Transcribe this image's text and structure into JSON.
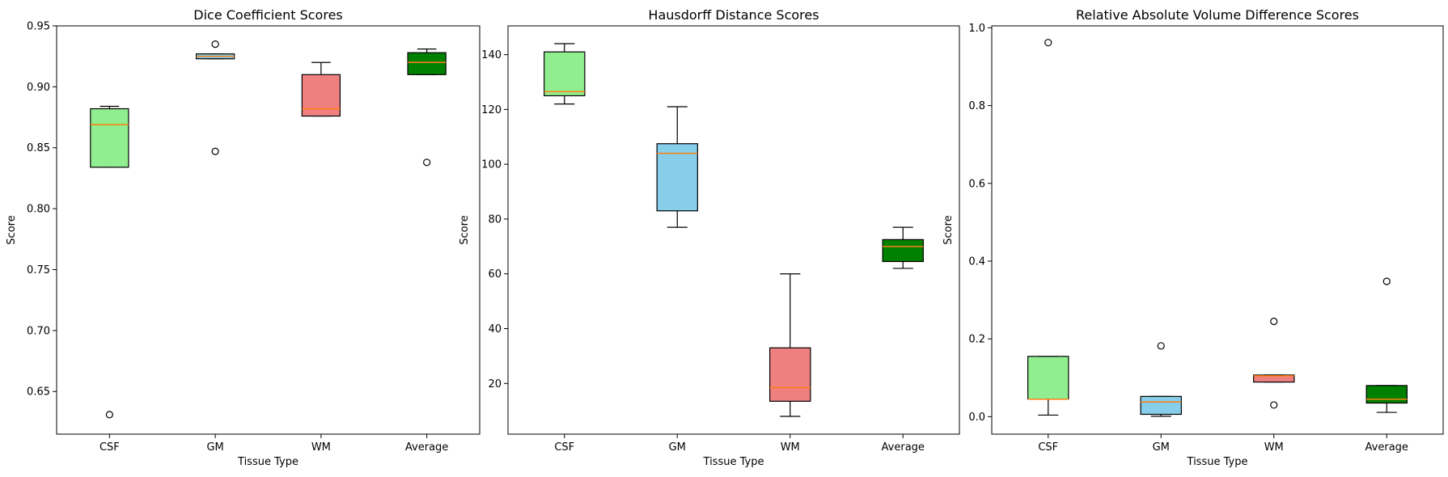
{
  "chart_data": [
    {
      "type": "box",
      "title": "Dice Coefficient Scores",
      "xlabel": "Tissue Type",
      "ylabel": "Score",
      "categories": [
        "CSF",
        "GM",
        "WM",
        "Average"
      ],
      "ylim": [
        0.615,
        0.95
      ],
      "yticks": [
        0.65,
        0.7,
        0.75,
        0.8,
        0.85,
        0.9,
        0.95
      ],
      "yticklabels": [
        "0.65",
        "0.70",
        "0.75",
        "0.80",
        "0.85",
        "0.90",
        "0.95"
      ],
      "boxes": [
        {
          "q1": 0.834,
          "median": 0.869,
          "q3": 0.882,
          "whislo": 0.834,
          "whishi": 0.884,
          "fliers": [
            0.631
          ],
          "color": "#90ee90"
        },
        {
          "q1": 0.923,
          "median": 0.925,
          "q3": 0.927,
          "whislo": 0.923,
          "whishi": 0.927,
          "fliers": [
            0.935,
            0.847
          ],
          "color": "#87ceeb"
        },
        {
          "q1": 0.876,
          "median": 0.882,
          "q3": 0.91,
          "whislo": 0.876,
          "whishi": 0.92,
          "fliers": [],
          "color": "#f08080"
        },
        {
          "q1": 0.91,
          "median": 0.92,
          "q3": 0.928,
          "whislo": 0.91,
          "whishi": 0.931,
          "fliers": [
            0.838
          ],
          "color": "#008000"
        }
      ]
    },
    {
      "type": "box",
      "title": "Hausdorff Distance Scores",
      "xlabel": "Tissue Type",
      "ylabel": "Score",
      "categories": [
        "CSF",
        "GM",
        "WM",
        "Average"
      ],
      "ylim": [
        1.5,
        150.5
      ],
      "yticks": [
        20,
        40,
        60,
        80,
        100,
        120,
        140
      ],
      "yticklabels": [
        "20",
        "40",
        "60",
        "80",
        "100",
        "120",
        "140"
      ],
      "boxes": [
        {
          "q1": 125,
          "median": 126.5,
          "q3": 141,
          "whislo": 122,
          "whishi": 144,
          "fliers": [],
          "color": "#90ee90"
        },
        {
          "q1": 83,
          "median": 104,
          "q3": 107.5,
          "whislo": 77,
          "whishi": 121,
          "fliers": [],
          "color": "#87ceeb"
        },
        {
          "q1": 13.5,
          "median": 18.5,
          "q3": 33,
          "whislo": 8,
          "whishi": 60,
          "fliers": [],
          "color": "#f08080"
        },
        {
          "q1": 64.5,
          "median": 70,
          "q3": 72.5,
          "whislo": 62,
          "whishi": 77,
          "fliers": [],
          "color": "#008000"
        }
      ]
    },
    {
      "type": "box",
      "title": "Relative Absolute Volume Difference Scores",
      "xlabel": "Tissue Type",
      "ylabel": "Score",
      "categories": [
        "CSF",
        "GM",
        "WM",
        "Average"
      ],
      "ylim": [
        -0.045,
        1.005
      ],
      "yticks": [
        0.0,
        0.2,
        0.4,
        0.6,
        0.8,
        1.0
      ],
      "yticklabels": [
        "0.0",
        "0.2",
        "0.4",
        "0.6",
        "0.8",
        "1.0"
      ],
      "boxes": [
        {
          "q1": 0.045,
          "median": 0.045,
          "q3": 0.155,
          "whislo": 0.004,
          "whishi": 0.155,
          "fliers": [
            0.962
          ],
          "color": "#90ee90"
        },
        {
          "q1": 0.006,
          "median": 0.038,
          "q3": 0.052,
          "whislo": 0.001,
          "whishi": 0.052,
          "fliers": [
            0.182
          ],
          "color": "#87ceeb"
        },
        {
          "q1": 0.089,
          "median": 0.105,
          "q3": 0.107,
          "whislo": 0.089,
          "whishi": 0.107,
          "fliers": [
            0.245,
            0.03
          ],
          "color": "#f08080"
        },
        {
          "q1": 0.035,
          "median": 0.045,
          "q3": 0.08,
          "whislo": 0.011,
          "whishi": 0.08,
          "fliers": [
            0.348
          ],
          "color": "#008000"
        }
      ]
    }
  ],
  "colors": {
    "median": "#ff7f0e",
    "edge": "#000000"
  }
}
